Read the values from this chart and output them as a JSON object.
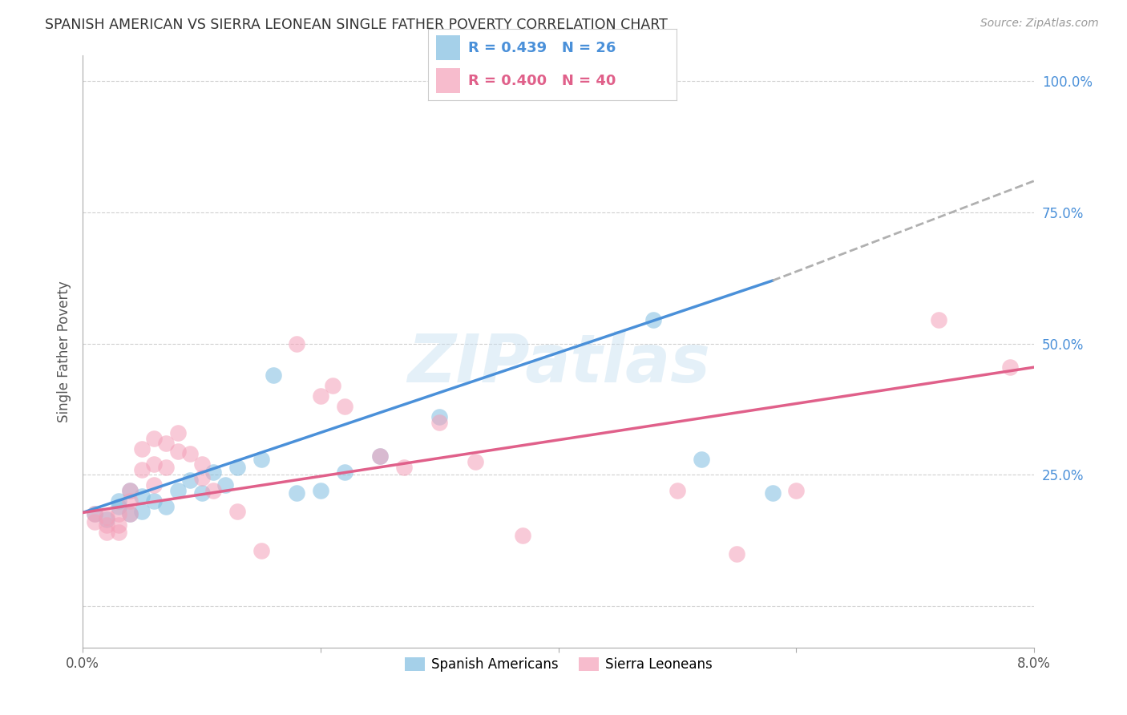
{
  "title": "SPANISH AMERICAN VS SIERRA LEONEAN SINGLE FATHER POVERTY CORRELATION CHART",
  "source": "Source: ZipAtlas.com",
  "ylabel": "Single Father Poverty",
  "ylim": [
    -0.08,
    1.05
  ],
  "xlim": [
    0.0,
    0.08
  ],
  "ytick_vals": [
    0.0,
    0.25,
    0.5,
    0.75,
    1.0
  ],
  "ytick_labels": [
    "",
    "25.0%",
    "50.0%",
    "75.0%",
    "100.0%"
  ],
  "xtick_vals": [
    0.0,
    0.02,
    0.04,
    0.06,
    0.08
  ],
  "xtick_labels": [
    "0.0%",
    "",
    "",
    "",
    "8.0%"
  ],
  "legend_blue_text": "R = 0.439   N = 26",
  "legend_pink_text": "R = 0.400   N = 40",
  "legend_label_blue": "Spanish Americans",
  "legend_label_pink": "Sierra Leoneans",
  "blue_color": "#7fbde0",
  "pink_color": "#f4a0b8",
  "blue_line_color": "#4a90d9",
  "pink_line_color": "#e0608a",
  "dash_color": "#b0b0b0",
  "watermark": "ZIPatlas",
  "background_color": "#ffffff",
  "grid_color": "#d0d0d0",
  "title_color": "#333333",
  "source_color": "#999999",
  "ytick_color": "#4a90d9",
  "xtick_color": "#555555",
  "blue_points_x": [
    0.001,
    0.002,
    0.003,
    0.003,
    0.004,
    0.004,
    0.005,
    0.005,
    0.006,
    0.007,
    0.008,
    0.009,
    0.01,
    0.011,
    0.012,
    0.013,
    0.015,
    0.016,
    0.018,
    0.02,
    0.022,
    0.025,
    0.03,
    0.048,
    0.052,
    0.058
  ],
  "blue_points_y": [
    0.175,
    0.165,
    0.19,
    0.2,
    0.175,
    0.22,
    0.18,
    0.21,
    0.2,
    0.19,
    0.22,
    0.24,
    0.215,
    0.255,
    0.23,
    0.265,
    0.28,
    0.44,
    0.215,
    0.22,
    0.255,
    0.285,
    0.36,
    0.545,
    0.28,
    0.215
  ],
  "pink_points_x": [
    0.001,
    0.001,
    0.002,
    0.002,
    0.002,
    0.003,
    0.003,
    0.003,
    0.004,
    0.004,
    0.004,
    0.005,
    0.005,
    0.006,
    0.006,
    0.006,
    0.007,
    0.007,
    0.008,
    0.008,
    0.009,
    0.01,
    0.01,
    0.011,
    0.013,
    0.015,
    0.018,
    0.02,
    0.021,
    0.022,
    0.025,
    0.027,
    0.03,
    0.033,
    0.037,
    0.05,
    0.055,
    0.06,
    0.072,
    0.078
  ],
  "pink_points_y": [
    0.175,
    0.16,
    0.17,
    0.155,
    0.14,
    0.175,
    0.155,
    0.14,
    0.22,
    0.2,
    0.175,
    0.3,
    0.26,
    0.32,
    0.27,
    0.23,
    0.31,
    0.265,
    0.33,
    0.295,
    0.29,
    0.27,
    0.245,
    0.22,
    0.18,
    0.105,
    0.5,
    0.4,
    0.42,
    0.38,
    0.285,
    0.265,
    0.35,
    0.275,
    0.135,
    0.22,
    0.1,
    0.22,
    0.545,
    0.455
  ],
  "blue_line_x": [
    0.0,
    0.058
  ],
  "blue_line_y": [
    0.178,
    0.62
  ],
  "pink_line_x": [
    0.0,
    0.08
  ],
  "pink_line_y": [
    0.178,
    0.455
  ],
  "dash_line_x": [
    0.058,
    0.08
  ],
  "dash_line_y": [
    0.62,
    0.81
  ]
}
